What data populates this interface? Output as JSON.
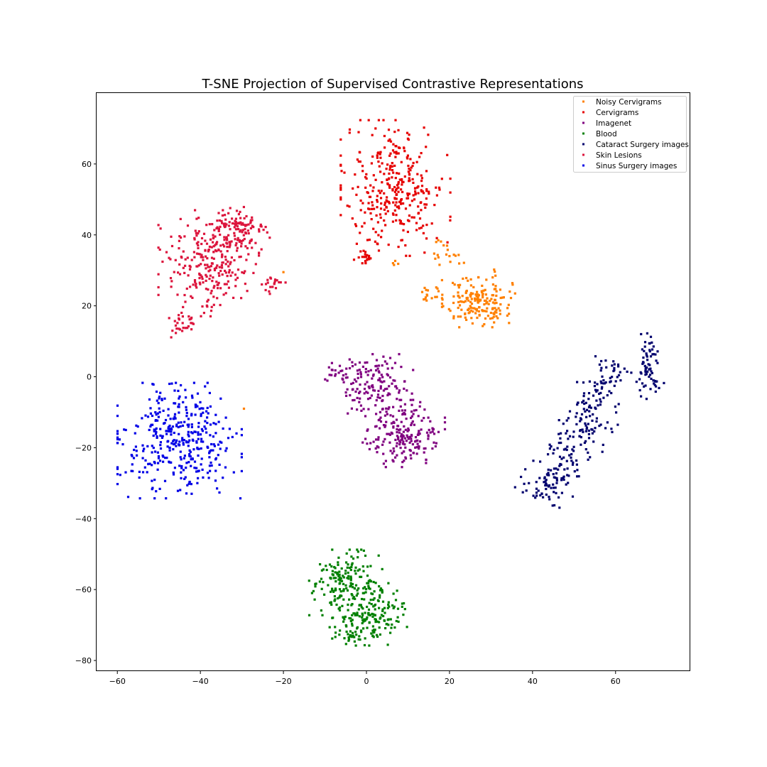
{
  "chart_data": {
    "type": "scatter",
    "title": "T-SNE Projection of Supervised Contrastive Representations",
    "xlabel": "",
    "ylabel": "",
    "xlim": [
      -65,
      78
    ],
    "ylim": [
      -83,
      80
    ],
    "xticks": [
      -60,
      -40,
      -20,
      0,
      20,
      40,
      60
    ],
    "yticks": [
      -80,
      -60,
      -40,
      -20,
      0,
      20,
      40,
      60
    ],
    "grid": false,
    "legend_position": "top-right",
    "series": [
      {
        "name": "Noisy Cervigrams",
        "color": "#ff8000",
        "clusters": [
          {
            "center": [
              27,
              21
            ],
            "spread": [
              4.0,
              3.2
            ],
            "count": 170
          },
          {
            "center": [
              15,
              23.5
            ],
            "spread": [
              1.4,
              1.3
            ],
            "count": 16
          },
          {
            "center": [
              20,
              34
            ],
            "spread": [
              3.2,
              2.0
            ],
            "count": 14
          },
          {
            "center": [
              18,
              38
            ],
            "spread": [
              0.8,
              1.0
            ],
            "count": 5
          },
          {
            "center": [
              31,
              29.5
            ],
            "spread": [
              0.8,
              0.7
            ],
            "count": 4
          },
          {
            "center": [
              23,
              26
            ],
            "spread": [
              1.5,
              1.2
            ],
            "count": 8
          },
          {
            "center": [
              7,
              32
            ],
            "spread": [
              0.6,
              0.3
            ],
            "count": 4
          }
        ],
        "points": [
          [
            -29.5,
            -9
          ],
          [
            -20,
            29.5
          ],
          [
            21,
            16.5
          ]
        ]
      },
      {
        "name": "Cervigrams",
        "color": "#e60000",
        "clusters": [
          {
            "center": [
              7,
              53
            ],
            "spread": [
              6.0,
              8.8
            ],
            "count": 330
          },
          {
            "center": [
              0,
              34
            ],
            "spread": [
              0.9,
              0.9
            ],
            "count": 18
          }
        ],
        "points": [
          [
            14,
            35
          ],
          [
            -3,
            33
          ],
          [
            -1,
            32
          ]
        ]
      },
      {
        "name": "Imagenet",
        "color": "#800080",
        "clusters": [
          {
            "center": [
              2,
              -2
            ],
            "spread": [
              4.2,
              3.8
            ],
            "count": 140
          },
          {
            "center": [
              9,
              -16
            ],
            "spread": [
              4.5,
              4.3
            ],
            "count": 200
          },
          {
            "center": [
              -6,
              1
            ],
            "spread": [
              1.8,
              1.3
            ],
            "count": 20
          }
        ],
        "points": []
      },
      {
        "name": "Blood",
        "color": "#008000",
        "clusters": [
          {
            "center": [
              -5,
              -58
            ],
            "spread": [
              4.0,
              4.2
            ],
            "count": 170
          },
          {
            "center": [
              1,
              -67
            ],
            "spread": [
              4.2,
              4.0
            ],
            "count": 160
          },
          {
            "center": [
              -4,
              -73
            ],
            "spread": [
              2.5,
              1.5
            ],
            "count": 25
          }
        ],
        "points": []
      },
      {
        "name": "Cataract Surgery images",
        "color": "#00006e",
        "line_clusters": [
          {
            "from": [
              42,
              -35
            ],
            "to": [
              61,
              4
            ],
            "width": 3.3,
            "count": 260
          }
        ],
        "clusters": [
          {
            "center": [
              68,
              3
            ],
            "spread": [
              1.1,
              4.2
            ],
            "count": 60
          },
          {
            "center": [
              70,
              -2
            ],
            "spread": [
              1.0,
              0.8
            ],
            "count": 8
          }
        ],
        "points": []
      },
      {
        "name": "Skin Lesions",
        "color": "#dc143c",
        "clusters": [
          {
            "center": [
              -38,
              32
            ],
            "spread": [
              5.5,
              6.8
            ],
            "count": 250
          },
          {
            "center": [
              -31,
              41
            ],
            "spread": [
              3.5,
              3.2
            ],
            "count": 110
          },
          {
            "center": [
              -44,
              15
            ],
            "spread": [
              1.6,
              2.2
            ],
            "count": 30
          },
          {
            "center": [
              -23,
              26
            ],
            "spread": [
              1.6,
              1.3
            ],
            "count": 20
          }
        ],
        "points": []
      },
      {
        "name": "Sinus Surgery images",
        "color": "#0000e6",
        "clusters": [
          {
            "center": [
              -45,
              -18
            ],
            "spread": [
              6.8,
              7.4
            ],
            "count": 380
          }
        ],
        "points": []
      }
    ]
  }
}
